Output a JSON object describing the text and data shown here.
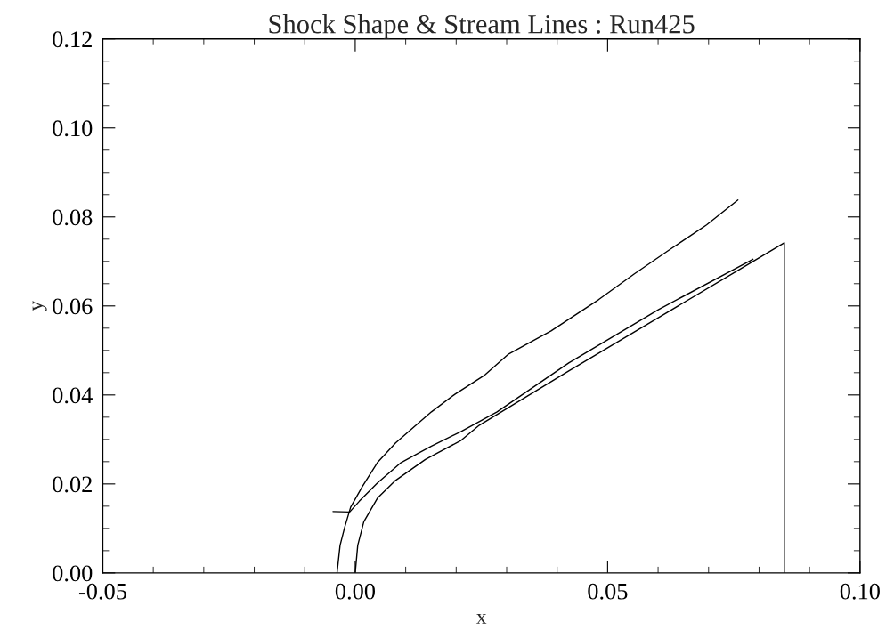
{
  "chart_data": {
    "type": "line",
    "title": "Shock Shape & Stream Lines : Run425",
    "xlabel": "x",
    "ylabel": "y",
    "xlim": [
      -0.05,
      0.1
    ],
    "ylim": [
      0,
      0.12
    ],
    "xticks": [
      {
        "value": -0.05,
        "label": "-0.05"
      },
      {
        "value": 0,
        "label": "0.00"
      },
      {
        "value": 0.05,
        "label": "0.05"
      },
      {
        "value": 0.1,
        "label": "0.10"
      }
    ],
    "yticks": [
      {
        "value": 0,
        "label": "0.00"
      },
      {
        "value": 0.02,
        "label": "0.02"
      },
      {
        "value": 0.04,
        "label": "0.04"
      },
      {
        "value": 0.06,
        "label": "0.06"
      },
      {
        "value": 0.08,
        "label": "0.08"
      },
      {
        "value": 0.1,
        "label": "0.10"
      },
      {
        "value": 0.12,
        "label": "0.12"
      }
    ],
    "grid": false,
    "legend": false,
    "marker": "none",
    "line_style": "solid",
    "series": [
      {
        "color": "#000000",
        "x": [
          -0.0036,
          -0.003,
          -0.0021,
          -0.0009,
          0.0014,
          0.0044,
          0.008,
          0.0151,
          0.0198,
          0.0257,
          0.0304,
          0.0388,
          0.0482,
          0.0553,
          0.0625,
          0.0696,
          0.0758
        ],
        "values": [
          0,
          0.0062,
          0.0102,
          0.0148,
          0.0194,
          0.0248,
          0.0292,
          0.0362,
          0.0402,
          0.0445,
          0.0492,
          0.0544,
          0.0614,
          0.0672,
          0.0728,
          0.0782,
          0.0838
        ]
      },
      {
        "color": "#000000",
        "x": [
          0,
          0.0005,
          0.0017,
          0.0044,
          0.008,
          0.0139,
          0.021,
          0.0246,
          0.0423,
          0.0601,
          0.0779,
          0.085,
          0.085
        ],
        "values": [
          0,
          0.0062,
          0.0115,
          0.0168,
          0.0208,
          0.0255,
          0.0298,
          0.0332,
          0.0454,
          0.0574,
          0.0694,
          0.0742,
          0
        ]
      },
      {
        "color": "#000000",
        "x": [
          -0.0044,
          -0.0011,
          0.0008,
          0.0044,
          0.0091,
          0.0151,
          0.021,
          0.0281,
          0.0423,
          0.0601,
          0.0788
        ],
        "values": [
          0.0138,
          0.0137,
          0.0161,
          0.0202,
          0.0248,
          0.0285,
          0.0318,
          0.0362,
          0.0472,
          0.0592,
          0.0705
        ]
      }
    ]
  }
}
